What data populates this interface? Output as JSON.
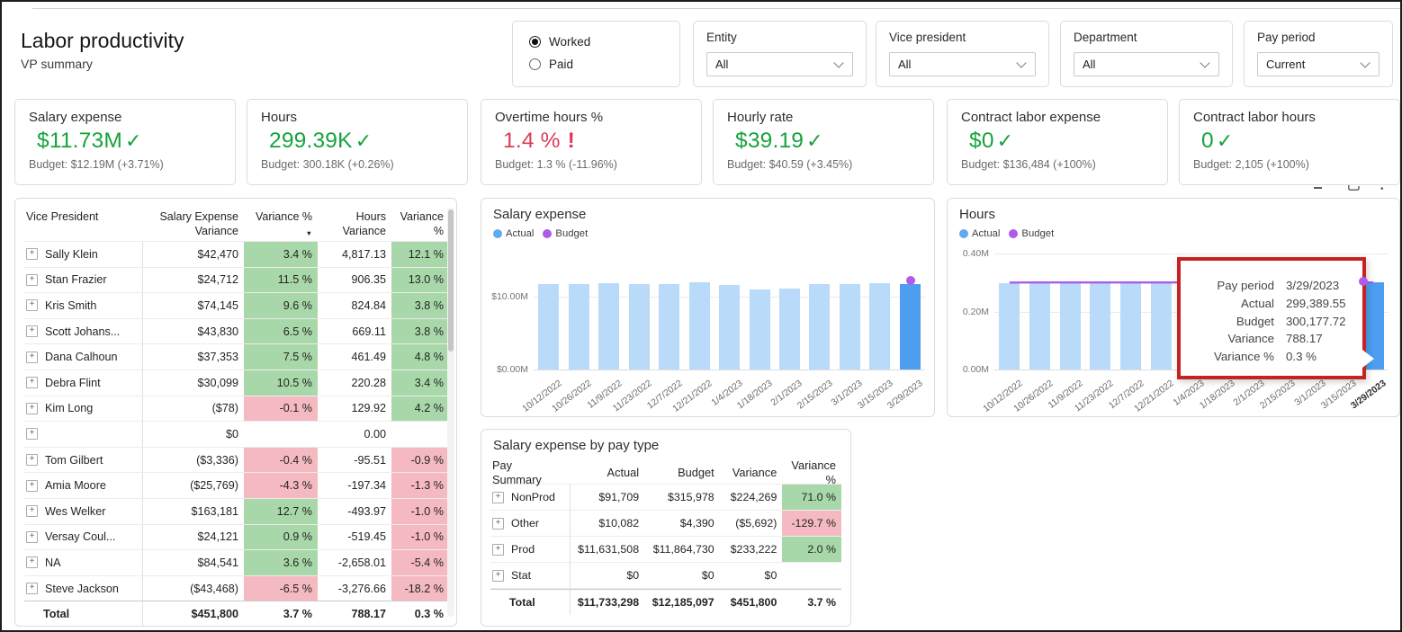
{
  "page": {
    "title": "Labor productivity",
    "subtitle": "VP summary"
  },
  "toggle": {
    "options": [
      {
        "label": "Worked",
        "selected": true
      },
      {
        "label": "Paid",
        "selected": false
      }
    ]
  },
  "filters": [
    {
      "label": "Entity",
      "value": "All"
    },
    {
      "label": "Vice president",
      "value": "All"
    },
    {
      "label": "Department",
      "value": "All"
    },
    {
      "label": "Pay period",
      "value": "Current"
    }
  ],
  "kpis": [
    {
      "title": "Salary expense",
      "value": "$11.73M",
      "indicator": "check",
      "budget": "Budget: $12.19M (+3.71%)"
    },
    {
      "title": "Hours",
      "value": "299.39K",
      "indicator": "check",
      "budget": "Budget: 300.18K (+0.26%)"
    },
    {
      "title": "Overtime hours %",
      "value": "1.4 %",
      "indicator": "alert",
      "budget": "Budget: 1.3 % (-11.96%)"
    },
    {
      "title": "Hourly rate",
      "value": "$39.19",
      "indicator": "check",
      "budget": "Budget: $40.59 (+3.45%)"
    },
    {
      "title": "Contract labor expense",
      "value": "$0",
      "indicator": "check",
      "budget": "Budget: $136,484 (+100%)"
    },
    {
      "title": "Contract labor hours",
      "value": "0",
      "indicator": "check",
      "budget": "Budget: 2,105 (+100%)"
    }
  ],
  "icons": {
    "check": "✓",
    "alert": "!",
    "sort_desc": "▼",
    "expand": "+",
    "dots": "• • •"
  },
  "vp_table": {
    "headers": [
      "Vice President",
      "Salary Expense Variance",
      "Variance %",
      "Hours Variance",
      "Variance %"
    ],
    "sorted_column_index": 2,
    "rows": [
      {
        "name": "Sally Klein",
        "salary_variance": "$42,470",
        "variance_pct": "3.4 %",
        "variance_state": "good",
        "hours_variance": "4,817.13",
        "hours_variance_pct": "12.1 %",
        "hours_state": "good"
      },
      {
        "name": "Stan Frazier",
        "salary_variance": "$24,712",
        "variance_pct": "11.5 %",
        "variance_state": "good",
        "hours_variance": "906.35",
        "hours_variance_pct": "13.0 %",
        "hours_state": "good"
      },
      {
        "name": "Kris Smith",
        "salary_variance": "$74,145",
        "variance_pct": "9.6 %",
        "variance_state": "good",
        "hours_variance": "824.84",
        "hours_variance_pct": "3.8 %",
        "hours_state": "good"
      },
      {
        "name": "Scott Johans...",
        "salary_variance": "$43,830",
        "variance_pct": "6.5 %",
        "variance_state": "good",
        "hours_variance": "669.11",
        "hours_variance_pct": "3.8 %",
        "hours_state": "good"
      },
      {
        "name": "Dana Calhoun",
        "salary_variance": "$37,353",
        "variance_pct": "7.5 %",
        "variance_state": "good",
        "hours_variance": "461.49",
        "hours_variance_pct": "4.8 %",
        "hours_state": "good"
      },
      {
        "name": "Debra Flint",
        "salary_variance": "$30,099",
        "variance_pct": "10.5 %",
        "variance_state": "good",
        "hours_variance": "220.28",
        "hours_variance_pct": "3.4 %",
        "hours_state": "good"
      },
      {
        "name": "Kim Long",
        "salary_variance": "($78)",
        "variance_pct": "-0.1 %",
        "variance_state": "bad",
        "hours_variance": "129.92",
        "hours_variance_pct": "4.2 %",
        "hours_state": "good"
      },
      {
        "name": "",
        "salary_variance": "$0",
        "variance_pct": "",
        "variance_state": "none",
        "hours_variance": "0.00",
        "hours_variance_pct": "",
        "hours_state": "none"
      },
      {
        "name": "Tom Gilbert",
        "salary_variance": "($3,336)",
        "variance_pct": "-0.4 %",
        "variance_state": "bad",
        "hours_variance": "-95.51",
        "hours_variance_pct": "-0.9 %",
        "hours_state": "bad"
      },
      {
        "name": "Amia Moore",
        "salary_variance": "($25,769)",
        "variance_pct": "-4.3 %",
        "variance_state": "bad",
        "hours_variance": "-197.34",
        "hours_variance_pct": "-1.3 %",
        "hours_state": "bad"
      },
      {
        "name": "Wes Welker",
        "salary_variance": "$163,181",
        "variance_pct": "12.7 %",
        "variance_state": "good",
        "hours_variance": "-493.97",
        "hours_variance_pct": "-1.0 %",
        "hours_state": "bad"
      },
      {
        "name": "Versay Coul...",
        "salary_variance": "$24,121",
        "variance_pct": "0.9 %",
        "variance_state": "good",
        "hours_variance": "-519.45",
        "hours_variance_pct": "-1.0 %",
        "hours_state": "bad"
      },
      {
        "name": "NA",
        "salary_variance": "$84,541",
        "variance_pct": "3.6 %",
        "variance_state": "good",
        "hours_variance": "-2,658.01",
        "hours_variance_pct": "-5.4 %",
        "hours_state": "bad"
      },
      {
        "name": "Steve Jackson",
        "salary_variance": "($43,468)",
        "variance_pct": "-6.5 %",
        "variance_state": "bad",
        "hours_variance": "-3,276.66",
        "hours_variance_pct": "-18.2 %",
        "hours_state": "bad"
      }
    ],
    "total": {
      "name": "Total",
      "salary_variance": "$451,800",
      "variance_pct": "3.7 %",
      "hours_variance": "788.17",
      "hours_variance_pct": "0.3 %"
    }
  },
  "pay_table": {
    "title": "Salary expense by pay type",
    "headers": [
      "Pay Summary",
      "Actual",
      "Budget",
      "Variance",
      "Variance %"
    ],
    "rows": [
      {
        "name": "NonProd",
        "actual": "$91,709",
        "budget": "$315,978",
        "variance": "$224,269",
        "variance_pct": "71.0 %",
        "state": "good"
      },
      {
        "name": "Other",
        "actual": "$10,082",
        "budget": "$4,390",
        "variance": "($5,692)",
        "variance_pct": "-129.7 %",
        "state": "bad"
      },
      {
        "name": "Prod",
        "actual": "$11,631,508",
        "budget": "$11,864,730",
        "variance": "$233,222",
        "variance_pct": "2.0 %",
        "state": "good"
      },
      {
        "name": "Stat",
        "actual": "$0",
        "budget": "$0",
        "variance": "$0",
        "variance_pct": "",
        "state": "none"
      }
    ],
    "total": {
      "name": "Total",
      "actual": "$11,733,298",
      "budget": "$12,185,097",
      "variance": "$451,800",
      "variance_pct": "3.7 %"
    }
  },
  "chart_data": [
    {
      "type": "bar",
      "title": "Salary expense",
      "legend": [
        "Actual",
        "Budget"
      ],
      "unit": "$ millions",
      "categories": [
        "10/12/2022",
        "10/26/2022",
        "11/9/2022",
        "11/23/2022",
        "12/7/2022",
        "12/21/2022",
        "1/4/2023",
        "1/18/2023",
        "2/1/2023",
        "2/15/2023",
        "3/1/2023",
        "3/15/2023",
        "3/29/2023"
      ],
      "series": [
        {
          "name": "Actual",
          "values": [
            11.7,
            11.76,
            11.8,
            11.73,
            11.79,
            11.93,
            11.57,
            11.02,
            11.07,
            11.79,
            11.79,
            11.81,
            11.73
          ]
        },
        {
          "name": "Budget",
          "values": [
            null,
            null,
            null,
            null,
            null,
            null,
            null,
            null,
            null,
            null,
            null,
            null,
            12.19
          ]
        }
      ],
      "yticks": [
        "$10.00M",
        "$0.00M"
      ],
      "ylim": [
        0,
        16
      ],
      "selected_category": "3/29/2023",
      "legend_position": "top-left",
      "grid": true
    },
    {
      "type": "bar",
      "title": "Hours",
      "legend": [
        "Actual",
        "Budget"
      ],
      "unit": "thousand hours",
      "categories": [
        "10/12/2022",
        "10/26/2022",
        "11/9/2022",
        "11/23/2022",
        "12/7/2022",
        "12/21/2022",
        "1/4/2023",
        "1/18/2023",
        "2/1/2023",
        "2/15/2023",
        "3/1/2023",
        "3/15/2023",
        "3/29/2023"
      ],
      "series": [
        {
          "name": "Actual",
          "values": [
            296.9,
            297.3,
            297.8,
            297.4,
            298.2,
            299.6,
            299.0,
            298.5,
            298.6,
            299.1,
            299.3,
            299.9,
            299.39
          ]
        },
        {
          "name": "Budget",
          "values": [
            300.0,
            300.05,
            300.08,
            300.1,
            300.12,
            300.14,
            300.15,
            300.15,
            300.16,
            300.16,
            300.17,
            300.17,
            300.18
          ]
        }
      ],
      "yticks": [
        "0.40M",
        "0.20M",
        "0.00M"
      ],
      "ylim": [
        0,
        400
      ],
      "selected_category": "3/29/2023",
      "legend_position": "top-left",
      "grid": true,
      "tooltip": {
        "highlight_border": true,
        "rows": [
          [
            "Pay period",
            "3/29/2023"
          ],
          [
            "Actual",
            "299,389.55"
          ],
          [
            "Budget",
            "300,177.72"
          ],
          [
            "Variance",
            "788.17"
          ],
          [
            "Variance %",
            "0.3 %"
          ]
        ]
      }
    }
  ],
  "colors": {
    "good_text": "#17a33c",
    "bad_text": "#db3b56",
    "good_cell": "#a8d8a9",
    "bad_cell": "#f5bac1",
    "bar_actual": "#b9daf8",
    "bar_selected": "#4d9ef1",
    "legend_actual": "#61aaf0",
    "budget_purple": "#ae5be8",
    "tooltip_highlight_border": "#c62222"
  }
}
